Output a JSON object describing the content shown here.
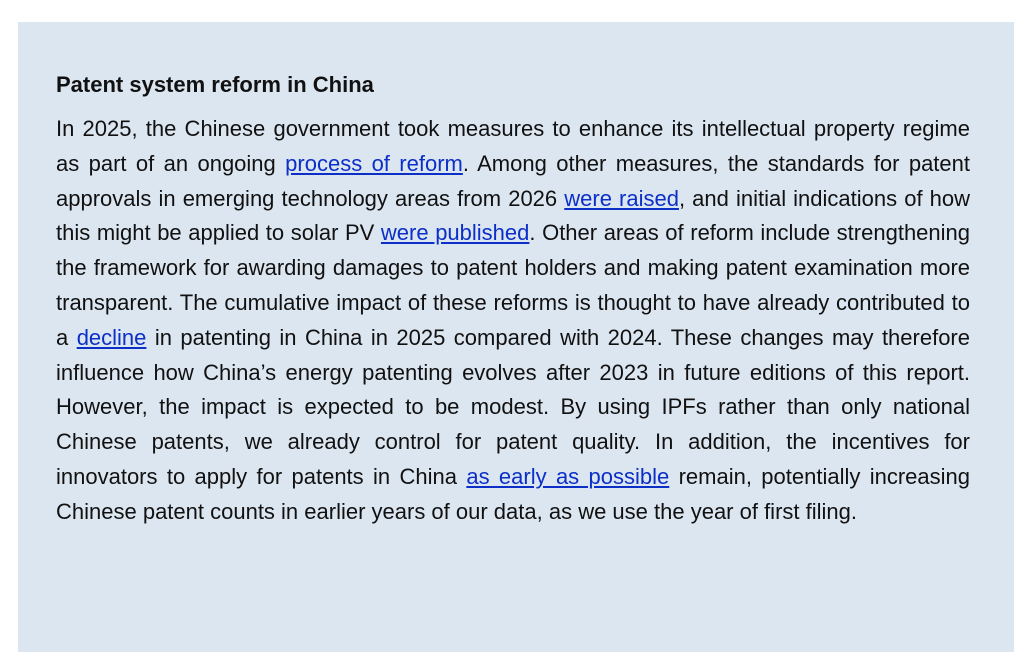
{
  "box": {
    "title": "Patent system reform in China",
    "paragraph": [
      {
        "text": "In 2025, the Chinese government took measures to enhance its intellectual property regime as part of an ongoing "
      },
      {
        "link": "process of reform"
      },
      {
        "text": ". Among other measures, the standards for patent approvals in emerging technology areas from 2026 "
      },
      {
        "link": "were raised"
      },
      {
        "text": ", and initial indications of how this might be applied to solar PV "
      },
      {
        "link": "were published"
      },
      {
        "text": ". Other areas of reform include strengthening the framework for awarding damages to patent holders and making patent examination more transparent. The cumulative impact of these reforms is thought to have already contributed to a "
      },
      {
        "link": "decline"
      },
      {
        "text": " in patenting in China in 2025 compared with 2024. These changes may therefore influence how China’s energy patenting evolves after 2023 in future editions of this report. However, the impact is expected to be modest. By using IPFs rather than only national Chinese patents, we already control for patent quality. In addition, the incentives for innovators to apply for patents in China "
      },
      {
        "link": "as early as possible"
      },
      {
        "text": " remain, potentially increasing Chinese patent counts in earlier years of our data, as we use the year of first filing."
      }
    ]
  }
}
